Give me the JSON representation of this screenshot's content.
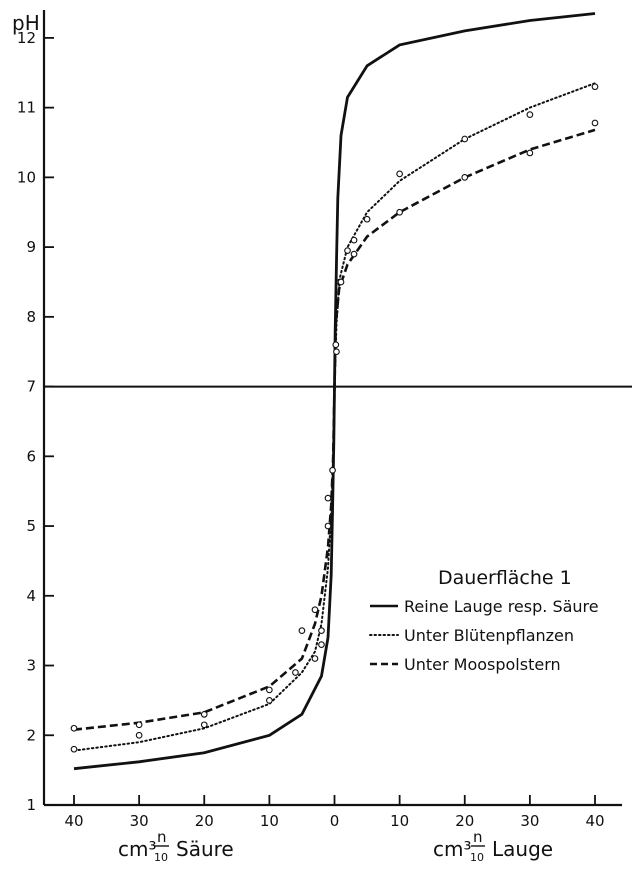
{
  "chart_data": {
    "type": "line",
    "y_axis_title": "pH",
    "x_axis_left_title": "cm³ n/10 Säure",
    "x_axis_right_title": "cm³ n/10 Lauge",
    "x_axis_left_title_main": "cm³",
    "x_axis_left_title_word": "Säure",
    "x_axis_right_title_word": "Lauge",
    "fraction_numerator": "n",
    "fraction_denominator": "10",
    "x_ticks": [
      40,
      30,
      20,
      10,
      0,
      10,
      20,
      30,
      40
    ],
    "x_tick_labels": [
      "40",
      "30",
      "20",
      "10",
      "0",
      "10",
      "20",
      "30",
      "40"
    ],
    "y_ticks": [
      1,
      2,
      3,
      4,
      5,
      6,
      7,
      8,
      9,
      10,
      11,
      12
    ],
    "y_tick_labels": [
      "1",
      "2",
      "3",
      "4",
      "5",
      "6",
      "7",
      "8",
      "9",
      "10",
      "11",
      "12"
    ],
    "xlim": [
      -40,
      40
    ],
    "ylim": [
      1,
      12.4
    ],
    "reference_line_y": 7,
    "legend": {
      "title": "Dauerfläche 1",
      "entries": [
        "Reine Lauge resp. Säure",
        "Unter Blütenpflanzen",
        "Unter Moospolstern"
      ]
    },
    "series": [
      {
        "name": "Reine Lauge resp. Säure",
        "style": "solid",
        "curve": [
          [
            -40,
            1.52
          ],
          [
            -30,
            1.62
          ],
          [
            -20,
            1.75
          ],
          [
            -10,
            2.0
          ],
          [
            -5,
            2.3
          ],
          [
            -2,
            2.85
          ],
          [
            -1,
            3.4
          ],
          [
            -0.5,
            4.3
          ],
          [
            -0.3,
            5.2
          ],
          [
            -0.1,
            6.2
          ],
          [
            0,
            7.0
          ],
          [
            0.1,
            7.8
          ],
          [
            0.3,
            8.8
          ],
          [
            0.5,
            9.7
          ],
          [
            1,
            10.6
          ],
          [
            2,
            11.15
          ],
          [
            5,
            11.6
          ],
          [
            10,
            11.9
          ],
          [
            20,
            12.1
          ],
          [
            30,
            12.25
          ],
          [
            40,
            12.35
          ]
        ],
        "points": []
      },
      {
        "name": "Unter Blütenpflanzen",
        "style": "dotted",
        "curve": [
          [
            -40,
            1.78
          ],
          [
            -30,
            1.9
          ],
          [
            -20,
            2.1
          ],
          [
            -10,
            2.45
          ],
          [
            -5,
            2.9
          ],
          [
            -3,
            3.2
          ],
          [
            -2,
            3.6
          ],
          [
            -1,
            4.4
          ],
          [
            -0.5,
            5.2
          ],
          [
            -0.2,
            6.0
          ],
          [
            0,
            7.0
          ],
          [
            0.3,
            7.9
          ],
          [
            0.8,
            8.55
          ],
          [
            2,
            9.0
          ],
          [
            5,
            9.5
          ],
          [
            10,
            9.95
          ],
          [
            20,
            10.55
          ],
          [
            30,
            11.0
          ],
          [
            40,
            11.35
          ]
        ],
        "points": [
          [
            -40,
            1.8
          ],
          [
            -30,
            2.0
          ],
          [
            -20,
            2.15
          ],
          [
            -10,
            2.5
          ],
          [
            -5,
            3.5
          ],
          [
            -3,
            3.8
          ],
          [
            -2,
            3.5
          ],
          [
            -1,
            5.4
          ],
          [
            -0.3,
            5.8
          ],
          [
            0.3,
            7.5
          ],
          [
            0.8,
            8.5
          ],
          [
            2,
            8.95
          ],
          [
            3,
            9.1
          ],
          [
            5,
            9.4
          ],
          [
            10,
            10.05
          ],
          [
            20,
            10.55
          ],
          [
            30,
            10.9
          ],
          [
            40,
            11.3
          ]
        ]
      },
      {
        "name": "Unter Moospolstern",
        "style": "dashed",
        "curve": [
          [
            -40,
            2.08
          ],
          [
            -30,
            2.18
          ],
          [
            -20,
            2.33
          ],
          [
            -10,
            2.7
          ],
          [
            -5,
            3.1
          ],
          [
            -3,
            3.6
          ],
          [
            -2,
            4.0
          ],
          [
            -1,
            4.7
          ],
          [
            -0.5,
            5.3
          ],
          [
            -0.2,
            6.0
          ],
          [
            0,
            7.0
          ],
          [
            0.2,
            7.9
          ],
          [
            0.7,
            8.4
          ],
          [
            2,
            8.75
          ],
          [
            5,
            9.15
          ],
          [
            10,
            9.5
          ],
          [
            20,
            10.0
          ],
          [
            30,
            10.4
          ],
          [
            40,
            10.68
          ]
        ],
        "points": [
          [
            -40,
            2.1
          ],
          [
            -30,
            2.15
          ],
          [
            -20,
            2.3
          ],
          [
            -10,
            2.65
          ],
          [
            -6,
            2.9
          ],
          [
            -3,
            3.1
          ],
          [
            -2,
            3.3
          ],
          [
            -1,
            5.0
          ],
          [
            0.2,
            7.6
          ],
          [
            1,
            8.5
          ],
          [
            3,
            8.9
          ],
          [
            10,
            9.5
          ],
          [
            20,
            10.0
          ],
          [
            30,
            10.35
          ],
          [
            40,
            10.78
          ]
        ]
      }
    ]
  }
}
